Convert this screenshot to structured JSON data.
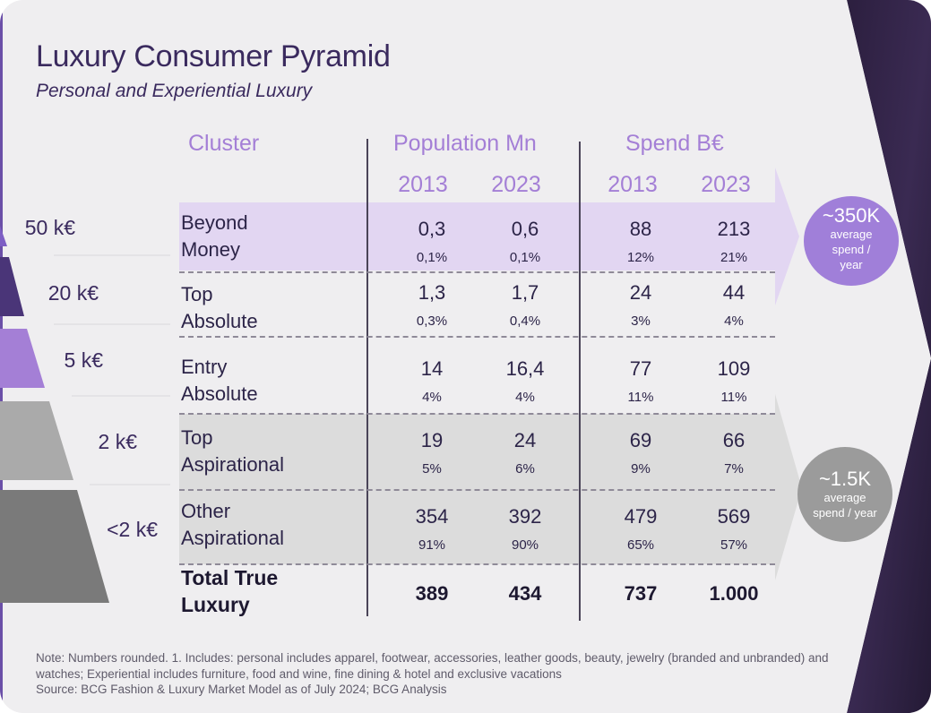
{
  "title": "Luxury Consumer Pyramid",
  "subtitle": "Personal and Experiential Luxury",
  "headers": {
    "cluster": "Cluster",
    "population": "Population Mn",
    "spend": "Spend B€",
    "pop_years": [
      "2013",
      "2023"
    ],
    "spend_years": [
      "2013",
      "2023"
    ]
  },
  "tiers": [
    "50 k€",
    "20 k€",
    "5 k€",
    "2 k€",
    "<2 k€"
  ],
  "rows": [
    {
      "line1": "Beyond",
      "line2": "Money",
      "pop2013": "0,3",
      "pop2023": "0,6",
      "spend2013": "88",
      "spend2023": "213",
      "pop2013_pct": "0,1%",
      "pop2023_pct": "0,1%",
      "spend2013_pct": "12%",
      "spend2023_pct": "21%"
    },
    {
      "line1": "Top",
      "line2": "Absolute",
      "pop2013": "1,3",
      "pop2023": "1,7",
      "spend2013": "24",
      "spend2023": "44",
      "pop2013_pct": "0,3%",
      "pop2023_pct": "0,4%",
      "spend2013_pct": "3%",
      "spend2023_pct": "4%"
    },
    {
      "line1": "Entry",
      "line2": "Absolute",
      "pop2013": "14",
      "pop2023": "16,4",
      "spend2013": "77",
      "spend2023": "109",
      "pop2013_pct": "4%",
      "pop2023_pct": "4%",
      "spend2013_pct": "11%",
      "spend2023_pct": "11%"
    },
    {
      "line1": "Top",
      "line2": "Aspirational",
      "pop2013": "19",
      "pop2023": "24",
      "spend2013": "69",
      "spend2023": "66",
      "pop2013_pct": "5%",
      "pop2023_pct": "6%",
      "spend2013_pct": "9%",
      "spend2023_pct": "7%"
    },
    {
      "line1": "Other",
      "line2": "Aspirational",
      "pop2013": "354",
      "pop2023": "392",
      "spend2013": "479",
      "spend2023": "569",
      "pop2013_pct": "91%",
      "pop2023_pct": "90%",
      "spend2013_pct": "65%",
      "spend2023_pct": "57%"
    }
  ],
  "total": {
    "line1": "Total True",
    "line2": "Luxury",
    "pop2013": "389",
    "pop2023": "434",
    "spend2013": "737",
    "spend2023": "1.000"
  },
  "callout_top": {
    "value": "~350K",
    "line1": "average",
    "line2": "spend /",
    "line3": "year"
  },
  "callout_bottom": {
    "value": "~1.5K",
    "line1": "average",
    "line2": "spend / year"
  },
  "note": "Note: Numbers rounded. 1. Includes: personal includes apparel, footwear, accessories, leather goods, beauty, jewelry (branded and unbranded) and watches; Experiential includes furniture, food and wine, fine dining & hotel and exclusive vacations",
  "source": "Source: BCG Fashion & Luxury Market Model as of July 2024; BCG Analysis",
  "colors": {
    "accent_light": "#a47fd6",
    "band_purple": "#e2d6f2",
    "band_grey": "#dcdcdc",
    "dark_bg": "#35264a",
    "circle_purple": "#a07fd9",
    "circle_grey": "#9b9b9b"
  }
}
